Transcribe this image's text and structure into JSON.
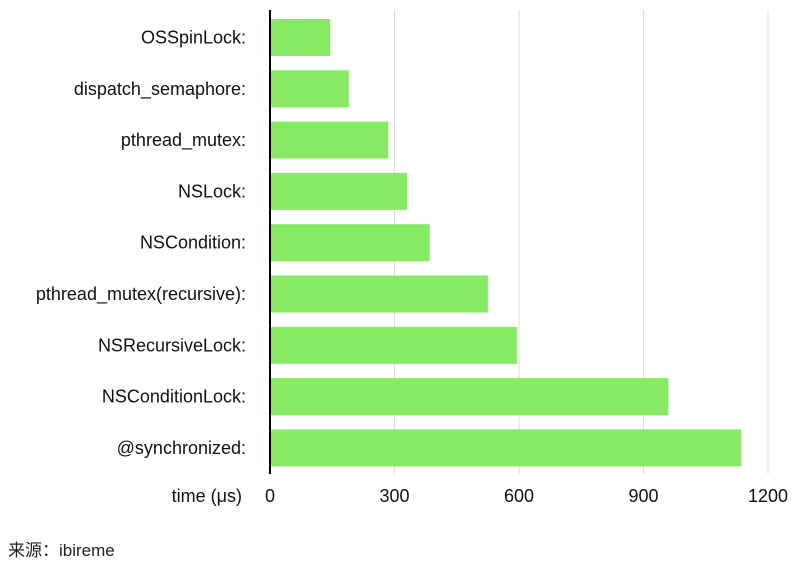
{
  "chart_data": {
    "type": "bar",
    "orientation": "horizontal",
    "categories": [
      "OSSpinLock:",
      "dispatch_semaphore:",
      "pthread_mutex:",
      "NSLock:",
      "NSCondition:",
      "pthread_mutex(recursive):",
      "NSRecursiveLock:",
      "NSConditionLock:",
      "@synchronized:"
    ],
    "values": [
      145,
      190,
      285,
      330,
      385,
      525,
      595,
      960,
      1135
    ],
    "xlabel": "time (μs)",
    "xlim": [
      0,
      1200
    ],
    "xticks": [
      0,
      300,
      600,
      900,
      1200
    ],
    "grid": "vertical",
    "bar_color": "#86eb62",
    "axis_color": "#000000",
    "grid_color": "#dddddd"
  },
  "source": {
    "text": "来源：ibireme"
  }
}
